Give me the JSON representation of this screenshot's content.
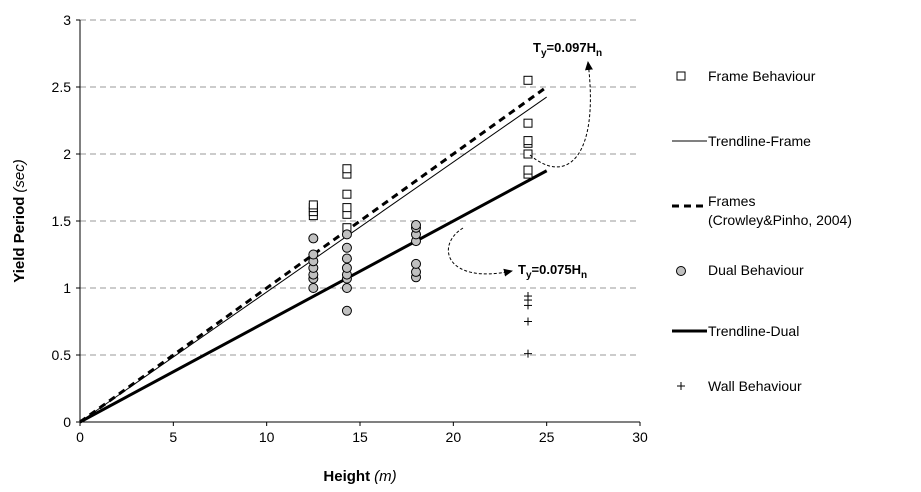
{
  "chart_data": {
    "type": "scatter",
    "xlabel": "Height",
    "xlabel_unit": "(m)",
    "ylabel": "Yield Period",
    "ylabel_unit": "(sec)",
    "xlim": [
      0,
      30
    ],
    "ylim": [
      0,
      3
    ],
    "xticks": [
      0,
      5,
      10,
      15,
      20,
      25,
      30
    ],
    "yticks": [
      0,
      0.5,
      1,
      1.5,
      2,
      2.5,
      3
    ],
    "ytick_labels": [
      "0",
      "0.5",
      "1",
      "1.5",
      "2",
      "2.5",
      "3"
    ],
    "grid": "horizontal dashed",
    "legend_position": "right",
    "series": [
      {
        "name": "Frame Behaviour",
        "kind": "scatter",
        "marker": "open-square",
        "color": "#000000",
        "points": [
          [
            12.5,
            1.54
          ],
          [
            12.5,
            1.57
          ],
          [
            12.5,
            1.6
          ],
          [
            12.5,
            1.62
          ],
          [
            14.3,
            1.45
          ],
          [
            14.3,
            1.55
          ],
          [
            14.3,
            1.6
          ],
          [
            14.3,
            1.7
          ],
          [
            14.3,
            1.85
          ],
          [
            14.3,
            1.89
          ],
          [
            24,
            1.85
          ],
          [
            24,
            1.88
          ],
          [
            24,
            2.0
          ],
          [
            24,
            2.08
          ],
          [
            24,
            2.1
          ],
          [
            24,
            2.23
          ],
          [
            24,
            2.55
          ]
        ]
      },
      {
        "name": "Trendline-Frame",
        "kind": "line",
        "style": "thin-solid",
        "color": "#000000",
        "points": [
          [
            0,
            0
          ],
          [
            25,
            2.425
          ]
        ]
      },
      {
        "name": "Frames",
        "name_line2": "(Crowley&Pinho, 2004)",
        "kind": "line",
        "style": "dashed-bold",
        "color": "#000000",
        "points": [
          [
            0,
            0
          ],
          [
            25,
            2.5
          ]
        ]
      },
      {
        "name": "Dual Behaviour",
        "kind": "scatter",
        "marker": "filled-circle",
        "color": "#c0c0c0",
        "points": [
          [
            12.5,
            1.0
          ],
          [
            12.5,
            1.07
          ],
          [
            12.5,
            1.1
          ],
          [
            12.5,
            1.15
          ],
          [
            12.5,
            1.2
          ],
          [
            12.5,
            1.25
          ],
          [
            12.5,
            1.37
          ],
          [
            14.3,
            0.83
          ],
          [
            14.3,
            1.0
          ],
          [
            14.3,
            1.07
          ],
          [
            14.3,
            1.1
          ],
          [
            14.3,
            1.15
          ],
          [
            14.3,
            1.22
          ],
          [
            14.3,
            1.3
          ],
          [
            14.3,
            1.4
          ],
          [
            18,
            1.08
          ],
          [
            18,
            1.12
          ],
          [
            18,
            1.18
          ],
          [
            18,
            1.35
          ],
          [
            18,
            1.4
          ],
          [
            18,
            1.45
          ],
          [
            18,
            1.47
          ]
        ]
      },
      {
        "name": "Trendline-Dual",
        "kind": "line",
        "style": "thick-solid",
        "color": "#000000",
        "points": [
          [
            0,
            0
          ],
          [
            25,
            1.875
          ]
        ]
      },
      {
        "name": "Wall Behaviour",
        "kind": "scatter",
        "marker": "plus",
        "color": "#000000",
        "points": [
          [
            24,
            0.51
          ],
          [
            24,
            0.75
          ],
          [
            24,
            0.87
          ],
          [
            24,
            0.91
          ],
          [
            24,
            0.94
          ]
        ]
      }
    ],
    "annotations": [
      {
        "main": "T",
        "sub": "y",
        "rest": "=0.097H",
        "sub2": "n"
      },
      {
        "main": "T",
        "sub": "y",
        "rest": "=0.075H",
        "sub2": "n"
      }
    ]
  }
}
